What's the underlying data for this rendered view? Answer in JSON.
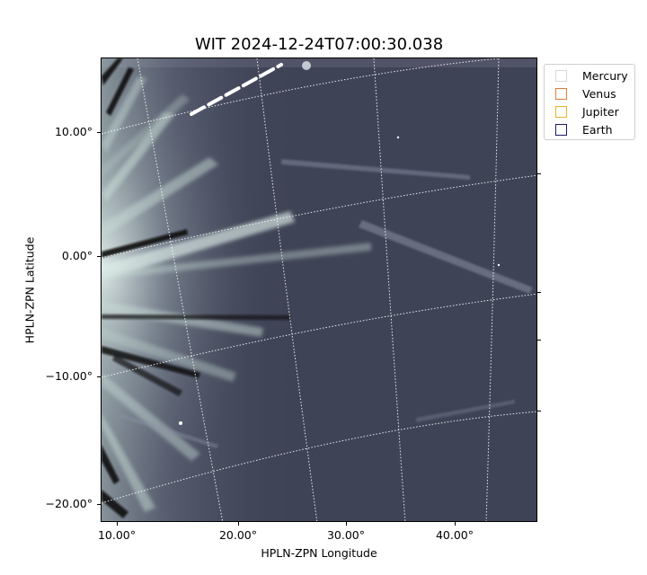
{
  "title": "WIT 2024-12-24T07:00:30.038",
  "axes": {
    "xlabel": "HPLN-ZPN Longitude",
    "ylabel": "HPLN-ZPN Latitude",
    "xticks": [
      "10.00°",
      "20.00°",
      "30.00°",
      "40.00°"
    ],
    "yticks": [
      "10.00°",
      "0.00°",
      "−10.00°",
      "−20.00°"
    ]
  },
  "legend": {
    "items": [
      {
        "label": "Mercury",
        "color": "#d9d9d9"
      },
      {
        "label": "Venus",
        "color": "#e07b39"
      },
      {
        "label": "Jupiter",
        "color": "#e6b422"
      },
      {
        "label": "Earth",
        "color": "#1a1a6e"
      }
    ]
  },
  "colors": {
    "background": "#3f4356",
    "streamer": "#c8dcd6",
    "grid": "#ffffff"
  }
}
